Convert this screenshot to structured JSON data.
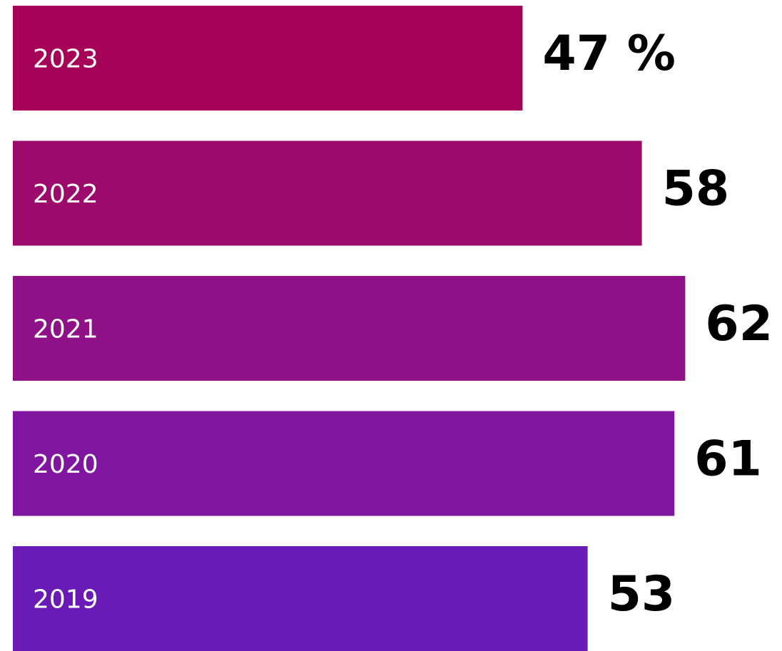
{
  "chart_data": {
    "type": "barh",
    "categories": [
      "2023",
      "2022",
      "2021",
      "2020",
      "2019"
    ],
    "values": [
      47,
      58,
      62,
      61,
      53
    ],
    "value_labels": [
      "47 %",
      "58",
      "62",
      "61",
      "53"
    ],
    "colors": [
      "#a60358",
      "#9c0a6c",
      "#8f1188",
      "#8016a0",
      "#6a1bb6"
    ],
    "xlim": [
      0,
      70
    ]
  }
}
